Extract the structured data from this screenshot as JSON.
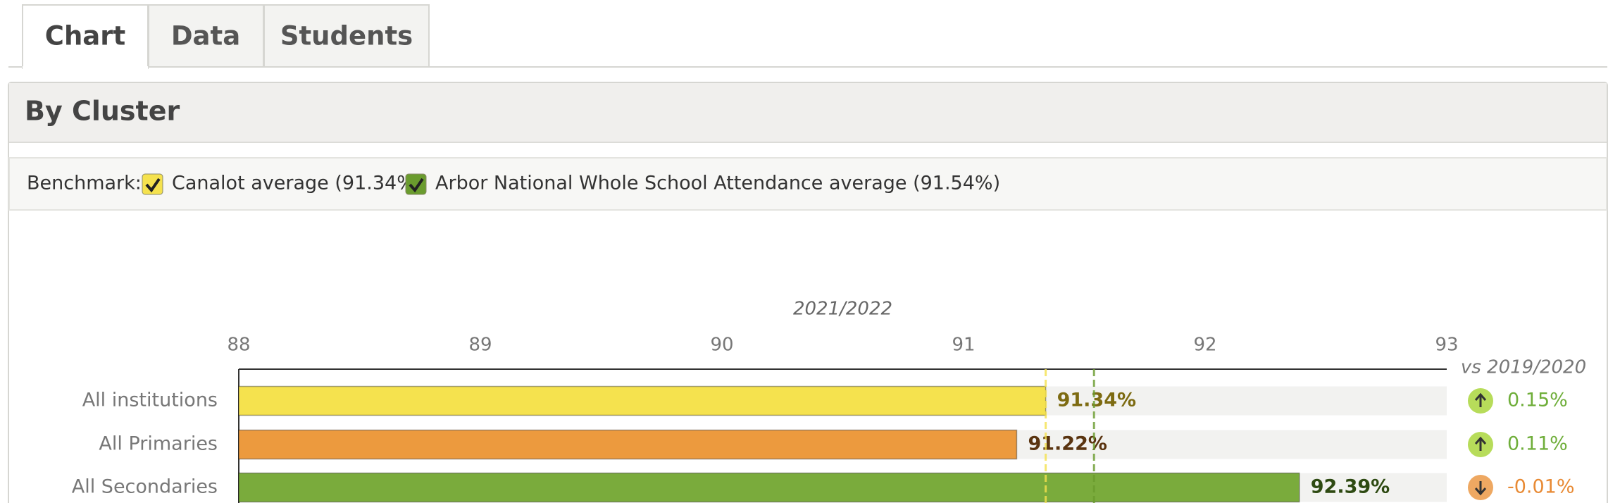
{
  "tabs": [
    "Chart",
    "Data",
    "Students"
  ],
  "panel_title": "By Cluster",
  "benchmark_label": "Benchmark:",
  "chart_data": {
    "type": "bar",
    "orientation": "horizontal",
    "subtitle": "2021/2022",
    "categories": [
      "All institutions",
      "All Primaries",
      "All Secondaries"
    ],
    "values": [
      91.34,
      91.22,
      92.39
    ],
    "value_labels": [
      "91.34%",
      "91.22%",
      "92.39%"
    ],
    "colors": [
      "#f5e24e",
      "#ec9a3e",
      "#7aab3c"
    ],
    "label_colors": [
      "#7d6b12",
      "#5a3410",
      "#2e4a12"
    ],
    "xlim": [
      88,
      93
    ],
    "xticks": [
      88,
      89,
      90,
      91,
      92,
      93
    ],
    "benchmarks": [
      {
        "name": "Canalot average (91.34%)",
        "value": 91.34,
        "color": "#f5e24e"
      },
      {
        "name": "Arbor National Whole School Attendance average (91.54%)",
        "value": 91.54,
        "color": "#6a9c2e"
      }
    ],
    "comparison": {
      "title": "vs 2019/2020",
      "values": [
        0.15,
        0.11,
        -0.01
      ],
      "value_labels": [
        "0.15%",
        "0.11%",
        "-0.01%"
      ],
      "up_color": "#6fae3a",
      "down_color": "#e88a34"
    }
  }
}
